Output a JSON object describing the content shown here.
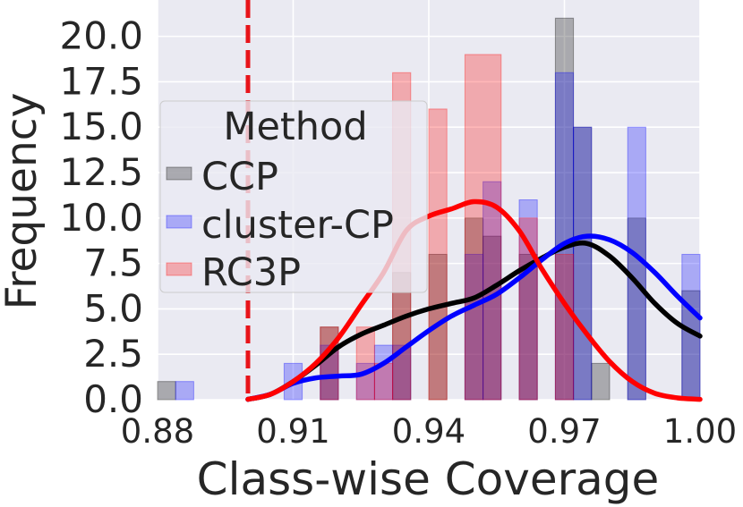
{
  "chart_data": {
    "type": "bar",
    "xlabel": "Class-wise Coverage",
    "ylabel": "Frequency",
    "xlim": [
      0.88,
      1.0
    ],
    "ylim": [
      0,
      22
    ],
    "x_ticks": [
      "0.88",
      "0.91",
      "0.94",
      "0.97",
      "1.00"
    ],
    "x_tick_values": [
      0.88,
      0.91,
      0.94,
      0.97,
      1.0
    ],
    "y_ticks": [
      "0.0",
      "2.5",
      "5.0",
      "7.5",
      "10.0",
      "12.5",
      "15.0",
      "17.5",
      "20.0"
    ],
    "y_tick_values": [
      0,
      2.5,
      5,
      7.5,
      10,
      12.5,
      15,
      17.5,
      20
    ],
    "grid": true,
    "threshold_line": {
      "x": 0.9,
      "color": "#e8141a",
      "style": "dashed"
    },
    "legend": {
      "title": "Method",
      "placement": "upper-left"
    },
    "series": [
      {
        "name": "CCP",
        "color": "#000000",
        "bars": [
          {
            "x0": 0.88,
            "x1": 0.884,
            "y": 1
          },
          {
            "x0": 0.916,
            "x1": 0.92,
            "y": 4
          },
          {
            "x0": 0.932,
            "x1": 0.936,
            "y": 7
          },
          {
            "x0": 0.94,
            "x1": 0.944,
            "y": 8
          },
          {
            "x0": 0.948,
            "x1": 0.952,
            "y": 10
          },
          {
            "x0": 0.952,
            "x1": 0.956,
            "y": 9
          },
          {
            "x0": 0.96,
            "x1": 0.964,
            "y": 8
          },
          {
            "x0": 0.968,
            "x1": 0.972,
            "y": 21
          },
          {
            "x0": 0.972,
            "x1": 0.976,
            "y": 15
          },
          {
            "x0": 0.976,
            "x1": 0.98,
            "y": 2
          },
          {
            "x0": 0.984,
            "x1": 0.988,
            "y": 10
          },
          {
            "x0": 0.996,
            "x1": 1.0,
            "y": 6
          }
        ],
        "kde": [
          [
            0.9,
            0.02
          ],
          [
            0.905,
            0.3
          ],
          [
            0.91,
            1.0
          ],
          [
            0.915,
            1.9
          ],
          [
            0.92,
            2.9
          ],
          [
            0.925,
            3.6
          ],
          [
            0.93,
            4.1
          ],
          [
            0.935,
            4.6
          ],
          [
            0.94,
            5.0
          ],
          [
            0.945,
            5.3
          ],
          [
            0.95,
            5.6
          ],
          [
            0.955,
            6.3
          ],
          [
            0.96,
            7.1
          ],
          [
            0.965,
            7.8
          ],
          [
            0.97,
            8.4
          ],
          [
            0.975,
            8.6
          ],
          [
            0.98,
            7.9
          ],
          [
            0.985,
            6.7
          ],
          [
            0.99,
            5.3
          ],
          [
            0.995,
            4.2
          ],
          [
            1.0,
            3.5
          ]
        ]
      },
      {
        "name": "cluster-CP",
        "color": "#0000ff",
        "bars": [
          {
            "x0": 0.884,
            "x1": 0.888,
            "y": 1
          },
          {
            "x0": 0.908,
            "x1": 0.912,
            "y": 2
          },
          {
            "x0": 0.916,
            "x1": 0.92,
            "y": 3
          },
          {
            "x0": 0.924,
            "x1": 0.928,
            "y": 2
          },
          {
            "x0": 0.928,
            "x1": 0.932,
            "y": 3
          },
          {
            "x0": 0.932,
            "x1": 0.936,
            "y": 3
          },
          {
            "x0": 0.948,
            "x1": 0.952,
            "y": 8
          },
          {
            "x0": 0.952,
            "x1": 0.956,
            "y": 12
          },
          {
            "x0": 0.96,
            "x1": 0.964,
            "y": 11
          },
          {
            "x0": 0.968,
            "x1": 0.972,
            "y": 18
          },
          {
            "x0": 0.972,
            "x1": 0.976,
            "y": 15
          },
          {
            "x0": 0.984,
            "x1": 0.988,
            "y": 15
          },
          {
            "x0": 0.996,
            "x1": 1.0,
            "y": 8
          }
        ],
        "kde": [
          [
            0.9,
            0.02
          ],
          [
            0.905,
            0.3
          ],
          [
            0.91,
            0.9
          ],
          [
            0.915,
            1.2
          ],
          [
            0.92,
            1.3
          ],
          [
            0.925,
            1.4
          ],
          [
            0.93,
            2.0
          ],
          [
            0.935,
            2.9
          ],
          [
            0.94,
            3.8
          ],
          [
            0.945,
            4.6
          ],
          [
            0.95,
            5.2
          ],
          [
            0.955,
            5.8
          ],
          [
            0.96,
            6.7
          ],
          [
            0.965,
            7.7
          ],
          [
            0.97,
            8.6
          ],
          [
            0.975,
            9.0
          ],
          [
            0.98,
            8.8
          ],
          [
            0.985,
            8.1
          ],
          [
            0.99,
            7.0
          ],
          [
            0.995,
            5.7
          ],
          [
            1.0,
            4.5
          ]
        ]
      },
      {
        "name": "RC3P",
        "color": "#ff0000",
        "bars": [
          {
            "x0": 0.916,
            "x1": 0.92,
            "y": 4
          },
          {
            "x0": 0.924,
            "x1": 0.928,
            "y": 4
          },
          {
            "x0": 0.928,
            "x1": 0.932,
            "y": 2
          },
          {
            "x0": 0.932,
            "x1": 0.936,
            "y": 18
          },
          {
            "x0": 0.94,
            "x1": 0.944,
            "y": 16
          },
          {
            "x0": 0.948,
            "x1": 0.956,
            "y": 19
          },
          {
            "x0": 0.96,
            "x1": 0.964,
            "y": 10
          },
          {
            "x0": 0.968,
            "x1": 0.972,
            "y": 8
          }
        ],
        "kde": [
          [
            0.9,
            0.02
          ],
          [
            0.905,
            0.3
          ],
          [
            0.91,
            1.0
          ],
          [
            0.915,
            2.0
          ],
          [
            0.92,
            3.4
          ],
          [
            0.925,
            5.2
          ],
          [
            0.93,
            7.0
          ],
          [
            0.935,
            9.3
          ],
          [
            0.94,
            10.1
          ],
          [
            0.945,
            10.5
          ],
          [
            0.95,
            10.9
          ],
          [
            0.955,
            10.6
          ],
          [
            0.96,
            9.3
          ],
          [
            0.965,
            7.2
          ],
          [
            0.97,
            5.3
          ],
          [
            0.975,
            3.6
          ],
          [
            0.98,
            2.1
          ],
          [
            0.985,
            1.0
          ],
          [
            0.99,
            0.35
          ],
          [
            0.995,
            0.1
          ],
          [
            1.0,
            0.02
          ]
        ]
      }
    ]
  }
}
